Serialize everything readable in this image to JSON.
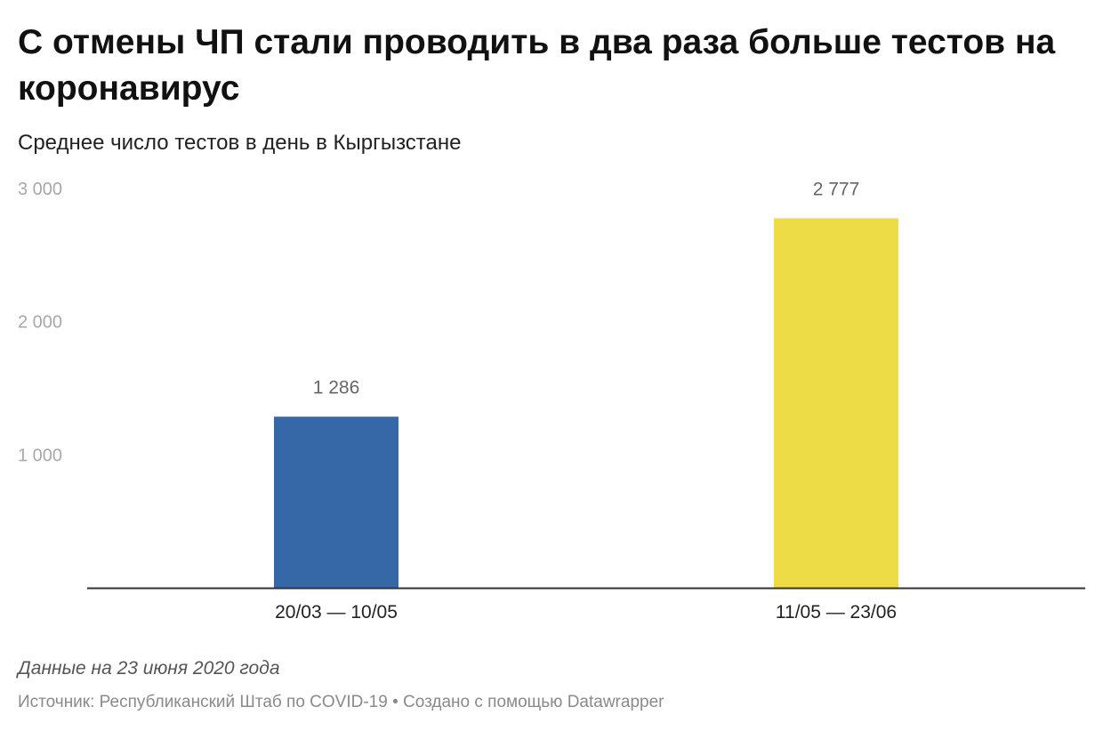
{
  "header": {
    "title": "С отмены ЧП стали проводить в два раза больше тестов на коронавирус",
    "subtitle": "Среднее число тестов в день в Кыргызстане"
  },
  "chart_data": {
    "type": "bar",
    "title": "С отмены ЧП стали проводить в два раза больше тестов на коронавирус",
    "subtitle": "Среднее число тестов в день в Кыргызстане",
    "categories": [
      "20/03 — 10/05",
      "11/05 — 23/06"
    ],
    "values": [
      1286,
      2777
    ],
    "value_labels": [
      "1 286",
      "2 777"
    ],
    "bar_colors": [
      "#3667a6",
      "#eedc47"
    ],
    "ylim": [
      0,
      3000
    ],
    "yticks": [
      1000,
      2000,
      3000
    ],
    "ytick_labels": [
      "1 000",
      "2 000",
      "3 000"
    ],
    "xlabel": "",
    "ylabel": "",
    "grid": false,
    "legend": "none"
  },
  "footer": {
    "notes": "Данные на 23 июня 2020 года",
    "source": "Источник: Республиканский Штаб по COVID-19 • Создано с помощью Datawrapper"
  },
  "colors": {
    "axis": "#333333",
    "tick_label": "#a8a8a8",
    "value_label": "#666666",
    "category_label": "#222222"
  }
}
